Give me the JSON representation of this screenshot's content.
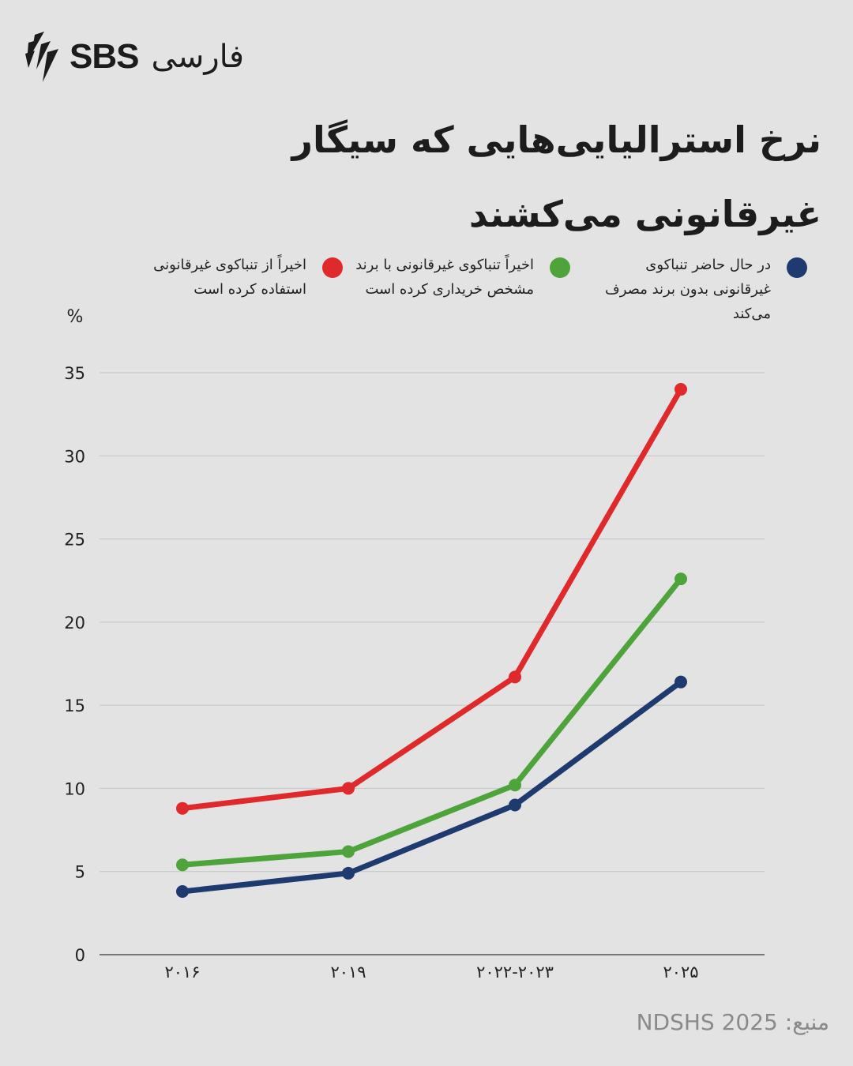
{
  "logo": {
    "brand": "SBS",
    "language": "فارسی",
    "icon": "sbs-stripes-logo"
  },
  "title": "نرخ استرالیایی‌هایی که سیگار غیرقانونی می‌کشند",
  "source": "منبع: NDSHS 2025",
  "colors": {
    "background": "#e3e3e3",
    "red": "#e0292b",
    "green": "#4ea33b",
    "navy": "#1f3a6e",
    "grid": "#c4c4c4"
  },
  "chart_data": {
    "type": "line",
    "ylabel": "%",
    "ylim": [
      0,
      35
    ],
    "yticks": [
      0,
      5,
      10,
      15,
      20,
      25,
      30,
      35
    ],
    "grid": true,
    "legend_position": "top",
    "categories": [
      "۲۰۱۶",
      "۲۰۱۹",
      "۲۰۲۲-۲۰۲۳",
      "۲۰۲۵"
    ],
    "series": [
      {
        "name": "اخیراً از تنباکوی غیرقانونی استفاده کرده است",
        "color": "#e0292b",
        "values": [
          8.8,
          10.0,
          16.7,
          34.0
        ]
      },
      {
        "name": "اخیراً تنباکوی غیرقانونی با برند مشخص خریداری کرده است",
        "color": "#4ea33b",
        "values": [
          5.4,
          6.2,
          10.2,
          22.6
        ]
      },
      {
        "name": "در حال حاضر تنباکوی غیرقانونی بدون برند مصرف می‌کند",
        "color": "#1f3a6e",
        "values": [
          3.8,
          4.9,
          9.0,
          16.4
        ]
      }
    ]
  }
}
